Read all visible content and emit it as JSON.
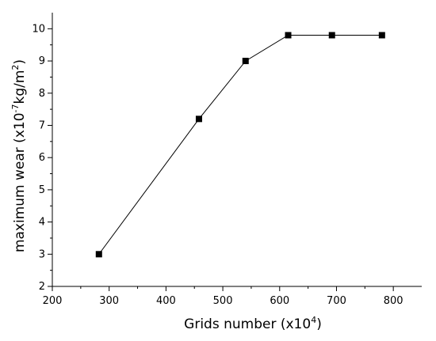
{
  "chart_data": {
    "type": "line",
    "title": "",
    "xlabel": "Grids number (x10",
    "xlabel_sup": "4",
    "xlabel_end": ")",
    "ylabel": "maximum wear (x10",
    "ylabel_sup1": "-7",
    "ylabel_mid": "kg/m",
    "ylabel_sup2": "2",
    "ylabel_end": ")",
    "xlim": [
      200,
      850
    ],
    "ylim": [
      2,
      10.5
    ],
    "xticks": [
      200,
      300,
      400,
      500,
      600,
      700,
      800
    ],
    "yticks": [
      2,
      3,
      4,
      5,
      6,
      7,
      8,
      9,
      10
    ],
    "series": [
      {
        "x": [
          282,
          458,
          540,
          615,
          692,
          780
        ],
        "y": [
          3.0,
          7.2,
          9.0,
          9.8,
          9.8,
          9.8
        ],
        "marker": "square",
        "color": "#000000"
      }
    ],
    "grid": false
  }
}
